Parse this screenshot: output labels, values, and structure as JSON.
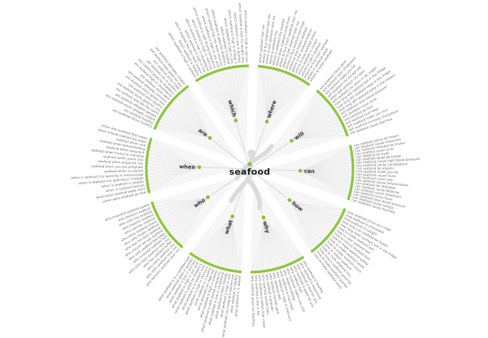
{
  "colors": {
    "ring_green": "#8cc63f",
    "dot_green": "#85c42f",
    "petal_fill": "#f6f6f6",
    "fan_line": "#dedede",
    "stem_line": "#d9d9d9",
    "question_text": "#6e6e6e",
    "branch_text": "#2e2e2e",
    "center_text": "#1c1c1c",
    "silhouette": "#d9d9d9"
  },
  "chart_data": {
    "type": "radial-question-wheel",
    "keyword": "seafood",
    "legend_position": "none",
    "branches": [
      {
        "label": "can",
        "angle": -2,
        "questions": [
          "can seafood sticks be frozen",
          "can seafood cause histamine",
          "can seafood chowder be frozen",
          "can seafood cause acne",
          "can seafood be halal",
          "can seafood salad be frozen",
          "can seafood cause high blood pressure",
          "can seafood cause constipation",
          "can seafood be organic",
          "can seafood make you fat",
          "can seafood cause hives",
          "can seafood cause gas",
          "can seafood cause inflammation",
          "can seafood be reheated",
          "can seafood cause bloating",
          "can seafood cause heartburn",
          "can seafood cause fever",
          "can seafood raise blood pressure",
          "can seafood cause vertigo",
          "can seafood cause diarrhea"
        ]
      },
      {
        "label": "will",
        "angle": 34,
        "questions": [
          "will seafood cause gout",
          "will seafood raise cholesterol",
          "will seafood make you fat",
          "will seafood city accept ebt",
          "when will seafood city open",
          "will seafood city open in las vegas",
          "how long will seafood last in the fridge",
          "how long will seafood keep in the fridge",
          "how long will seafood keep in the freezer",
          "will seafood raise blood pressure",
          "will seafood cause acne",
          "will seafood go bad",
          "will seafood hurt dogs",
          "will seafood make you sick",
          "will seafood increase cholesterol",
          "will seafood cause diarrhea"
        ]
      },
      {
        "label": "where",
        "angle": 70,
        "questions": [
          "where seafood near me",
          "where to buy seafood near me",
          "where to eat seafood near me",
          "where is seafood city",
          "where is seafood city located",
          "where does seafood come from",
          "where to buy fresh seafood near me",
          "where to get seafood near me",
          "where to buy seafood boil bags",
          "where to buy frozen seafood",
          "where is the seafood festival",
          "where to buy seafood online",
          "where seafood is caught",
          "where to catch seafood",
          "where to find fresh seafood",
          "where is seafood week",
          "where to order seafood"
        ]
      },
      {
        "label": "which",
        "angle": 106,
        "questions": [
          "which seafood is high in protein",
          "which seafood is healthy",
          "which seafood has the most protein",
          "which seafood is high in iron",
          "which seafood is low in cholesterol",
          "which seafood is high in mercury",
          "which seafood is safe during pregnancy",
          "which seafood is high in uric acid",
          "which seafood has the least mercury",
          "which seafood is good for diabetics",
          "which seafood is kosher",
          "which seafood is high in zinc",
          "which seafood is high in omega 3",
          "which seafood is low in purines",
          "which seafood is best for weight loss",
          "which seafood is high in calcium"
        ]
      },
      {
        "label": "are",
        "angle": 142,
        "questions": [
          "are seafood sticks healthy",
          "are seafood healthy",
          "are seafood sticks already cooked",
          "are seafood allergies genetic",
          "are seafood and fish the same",
          "are seafood sticks good for you",
          "are seafood boils healthy",
          "are seafood sticks gluten free",
          "are seafood allergies common",
          "are seafood sticks keto",
          "are seafood high in cholesterol",
          "are seafood good for diabetics",
          "are seafood rich in protein",
          "are seafood sticks halal",
          "are seafood boils good for you",
          "are seafood allergies curable"
        ]
      },
      {
        "label": "when",
        "angle": 178,
        "questions": [
          "when does seafood go bad",
          "when does seafood week start",
          "when is seafood festival",
          "when is seafood in season",
          "when is seafood city opening in chicago",
          "when is seafood city opening in mississauga",
          "seafood when on period",
          "seafood when you are pregnant",
          "seafood when pregnant nhs",
          "seafood when youre sick",
          "seafood when trying to conceive",
          "seafood when pregnant",
          "seafood when breastfeeding",
          "seafood when sick",
          "when should seafood be eaten",
          "when was seafood first eaten"
        ]
      },
      {
        "label": "who",
        "angle": 214,
        "questions": [
          "who delivers seafood near me",
          "who sells seafood near me",
          "who owns seafood city",
          "who has seafood buffet",
          "who sells fresh seafood near me",
          "who invented seafood boil",
          "who sells seafood boil bags",
          "who should not eat seafood",
          "who has the best seafood",
          "who sells frozen seafood",
          "who owns seafood shack",
          "who catches seafood",
          "who imports seafood",
          "who sells live seafood",
          "who delivers seafood",
          "who invented seafood paella"
        ]
      },
      {
        "label": "what",
        "angle": 250,
        "questions": [
          "what seafood is in season",
          "what seafood is healthy",
          "what seafood can pregnant women eat",
          "what seafood is high in iron",
          "what seafood is keto friendly",
          "what seafood is low in cholesterol",
          "what seafood is safe during pregnancy",
          "what seafood is high in protein",
          "what seafood can dogs eat",
          "what seafood is in paella",
          "what seafood is high in mercury",
          "what seafood is in season now",
          "what seafood is good for diabetics",
          "what seafood is high in uric acid",
          "what seafood is low in purines",
          "what seafood goes in gumbo",
          "what seafood is in a seafood boil"
        ]
      },
      {
        "label": "why",
        "angle": 286,
        "questions": [
          "why seafood is healthy",
          "why seafood is expensive",
          "why seafood is bad for you",
          "why seafood is good for you",
          "why seafood boil",
          "why seafood makes you sick",
          "why seafood allergy",
          "why seafood is important",
          "why seafood is high in mercury",
          "why seafood diet",
          "why seafood causes gout",
          "why seafood is popular",
          "why seafood smells fishy",
          "why seafood is better than meat",
          "why seafood is low in fat",
          "why seafood gives me diarrhea"
        ]
      },
      {
        "label": "how",
        "angle": 322,
        "questions": [
          "how seafood sticks are made",
          "how seafood is processed",
          "how seafood is caught",
          "how long can seafood be frozen",
          "how long does seafood last in the fridge",
          "how to make seafood boil",
          "how to cook seafood boil",
          "how to reheat seafood boil",
          "how to make seafood paella",
          "how to make seafood salad",
          "how to make seafood sauce",
          "how to steam seafood",
          "how to cook seafood mix",
          "how long is seafood good for",
          "how to make seafood gumbo",
          "how to make seafood stock"
        ]
      }
    ]
  }
}
